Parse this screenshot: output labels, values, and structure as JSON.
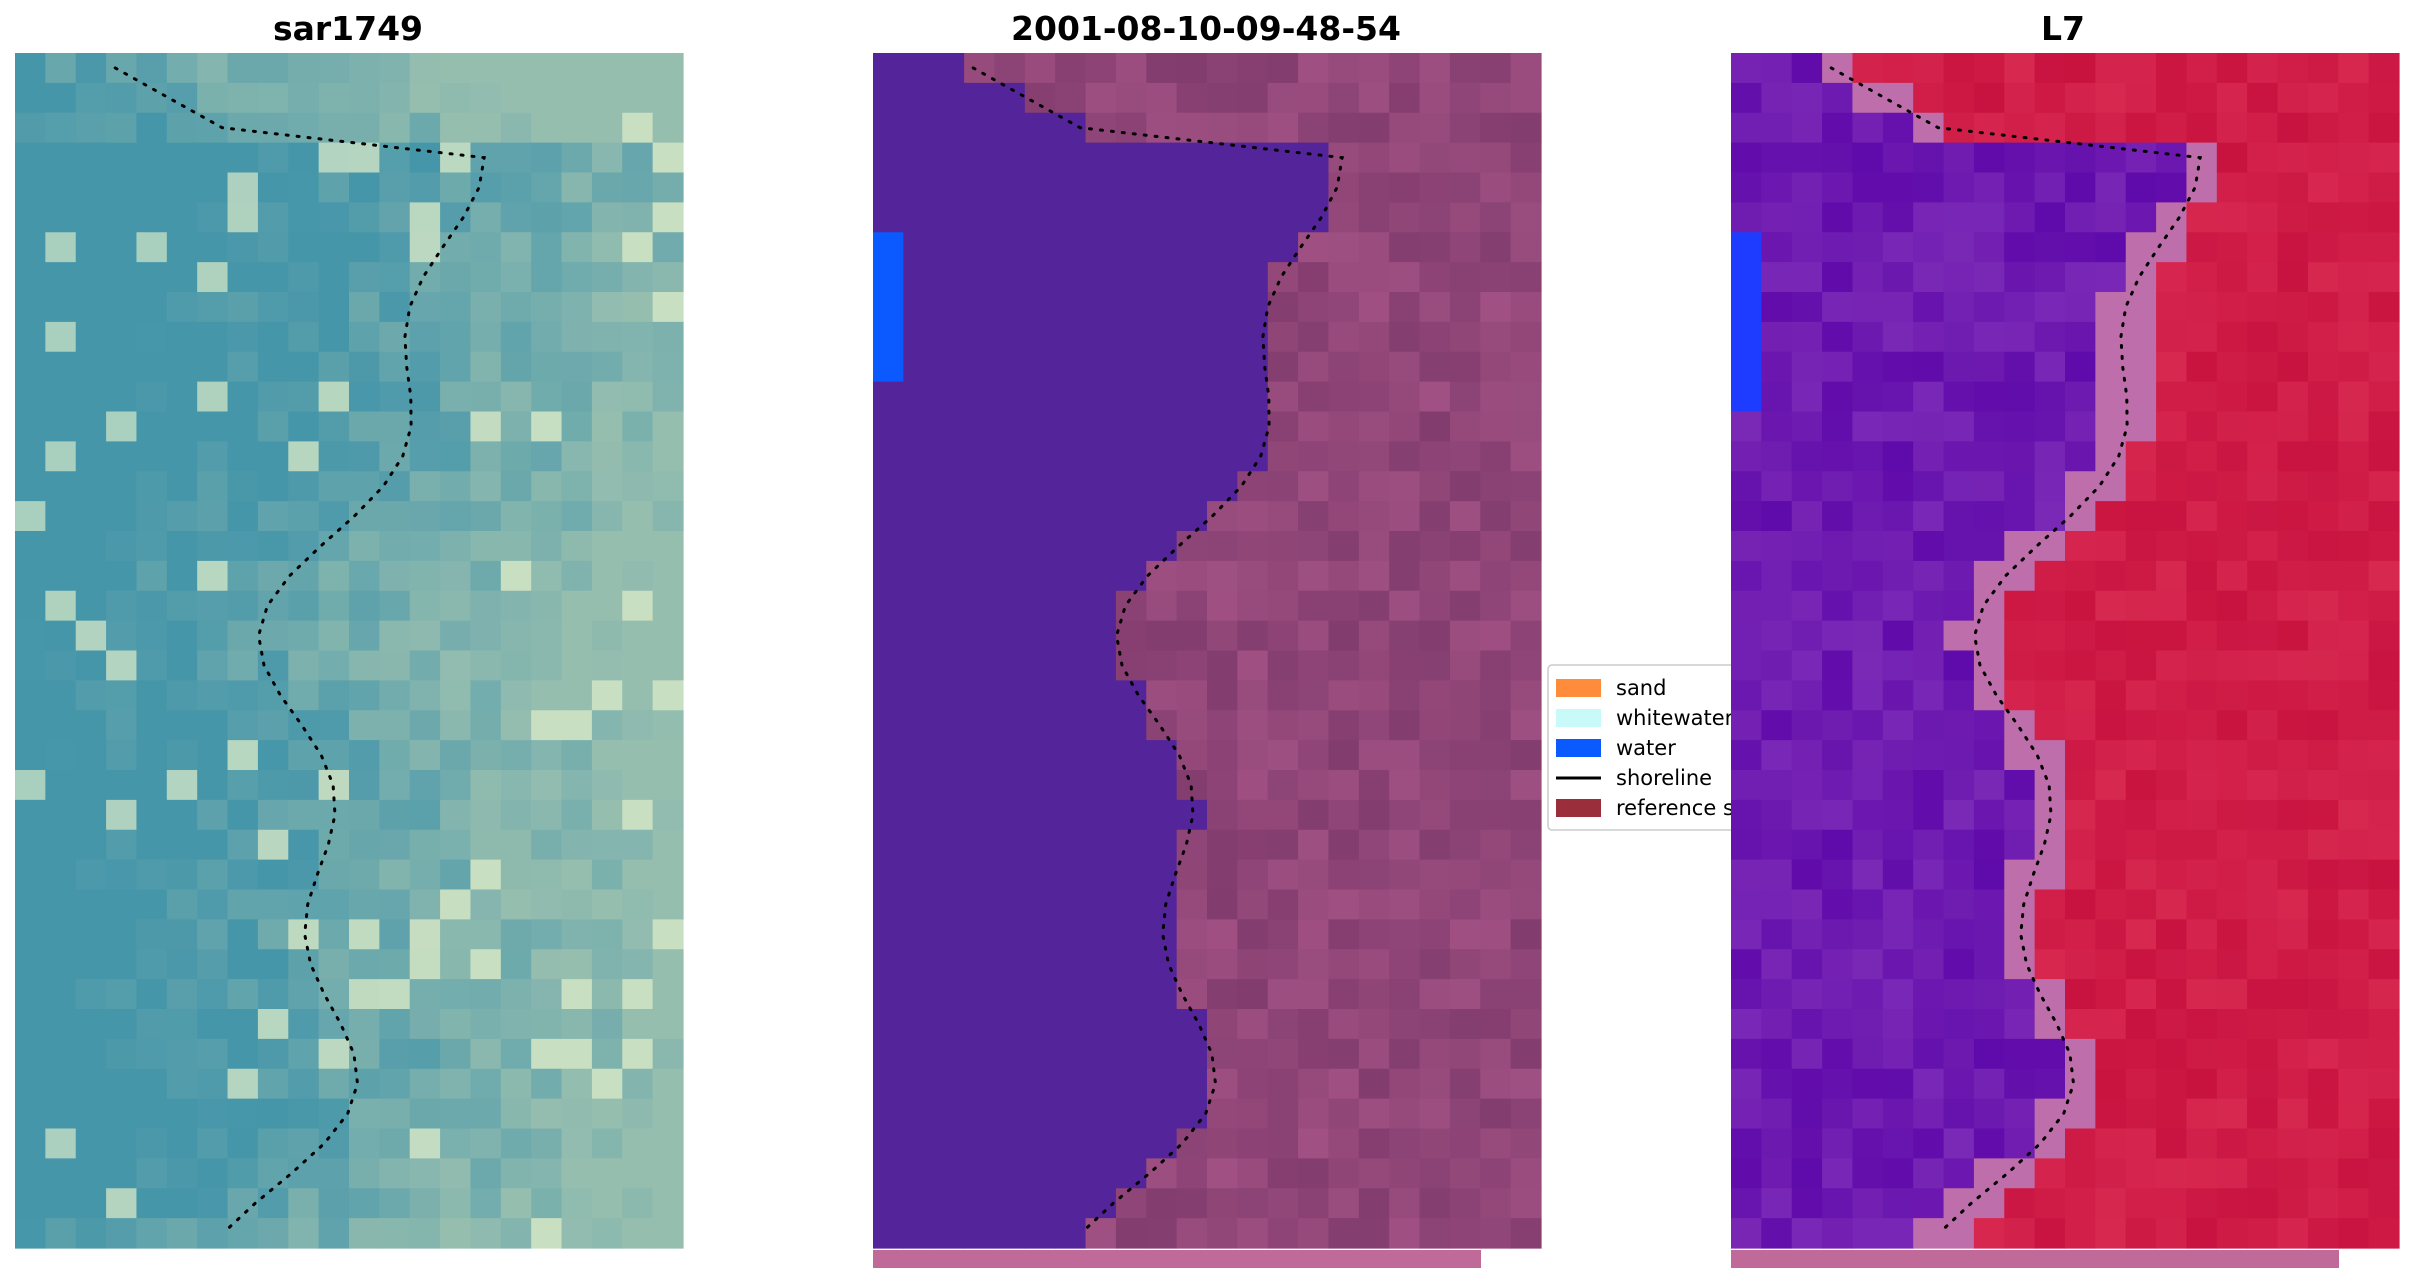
{
  "chart_data": [
    {
      "type": "heatmap",
      "title": "sar1749",
      "image": "rgb-satellite-composite",
      "overlay": "shoreline"
    },
    {
      "type": "heatmap",
      "title": "2001-08-10-09-48-54",
      "image": "classification-map",
      "overlay": "shoreline"
    },
    {
      "type": "heatmap",
      "title": "L7",
      "image": "water-index-map",
      "overlay": "shoreline"
    }
  ],
  "legend": {
    "items": [
      {
        "label": "sand",
        "color": "#ff8c3a",
        "kind": "patch"
      },
      {
        "label": "whitewater",
        "color": "#c8fafa",
        "kind": "patch"
      },
      {
        "label": "water",
        "color": "#0a5aff",
        "kind": "patch"
      },
      {
        "label": "shoreline",
        "color": "#000000",
        "kind": "line"
      },
      {
        "label": "reference shoreline buffer",
        "color": "#9a2e3a",
        "kind": "patch"
      }
    ]
  },
  "colors": {
    "water_class": "#53249a",
    "land_class": "#8a3f6e",
    "index_water": "#6a18a8",
    "index_land": "#c8123f",
    "buffer_bar": "#c06a9a"
  }
}
